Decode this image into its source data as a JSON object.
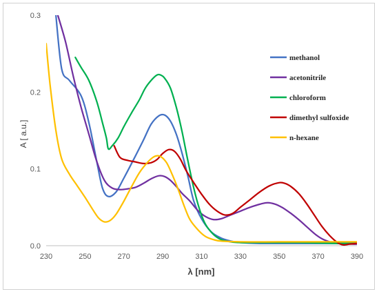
{
  "chart_data": {
    "type": "line",
    "title": "",
    "xlabel": "λ [nm]",
    "ylabel": "A [ a.u.]",
    "xlim": [
      230,
      390
    ],
    "ylim": [
      0,
      0.3
    ],
    "x_ticks": [
      230,
      250,
      270,
      290,
      310,
      330,
      350,
      370,
      390
    ],
    "y_ticks": [
      0,
      0.1,
      0.2,
      0.3
    ],
    "y_tick_labels": [
      "0.0",
      "0.1",
      "0.2",
      "0.3"
    ],
    "grid": false,
    "legend_position": "right",
    "series": [
      {
        "name": "methanol",
        "color": "#4472C4",
        "points": [
          [
            235,
            0.3
          ],
          [
            238,
            0.23
          ],
          [
            242,
            0.215
          ],
          [
            248,
            0.195
          ],
          [
            252,
            0.16
          ],
          [
            256,
            0.11
          ],
          [
            259,
            0.075
          ],
          [
            262,
            0.064
          ],
          [
            266,
            0.07
          ],
          [
            270,
            0.088
          ],
          [
            275,
            0.112
          ],
          [
            280,
            0.137
          ],
          [
            284,
            0.158
          ],
          [
            288,
            0.169
          ],
          [
            291,
            0.17
          ],
          [
            294,
            0.162
          ],
          [
            297,
            0.145
          ],
          [
            300,
            0.12
          ],
          [
            303,
            0.09
          ],
          [
            306,
            0.058
          ],
          [
            310,
            0.035
          ],
          [
            315,
            0.018
          ],
          [
            320,
            0.01
          ],
          [
            325,
            0.006
          ],
          [
            330,
            0.004
          ],
          [
            340,
            0.003
          ],
          [
            360,
            0.003
          ],
          [
            380,
            0.003
          ],
          [
            390,
            0.003
          ]
        ]
      },
      {
        "name": "acetonitrile",
        "color": "#7030A0",
        "points": [
          [
            236,
            0.3
          ],
          [
            240,
            0.265
          ],
          [
            244,
            0.22
          ],
          [
            248,
            0.18
          ],
          [
            252,
            0.145
          ],
          [
            256,
            0.11
          ],
          [
            260,
            0.085
          ],
          [
            264,
            0.075
          ],
          [
            268,
            0.073
          ],
          [
            272,
            0.074
          ],
          [
            276,
            0.076
          ],
          [
            280,
            0.081
          ],
          [
            284,
            0.087
          ],
          [
            288,
            0.091
          ],
          [
            291,
            0.09
          ],
          [
            294,
            0.085
          ],
          [
            297,
            0.077
          ],
          [
            300,
            0.068
          ],
          [
            304,
            0.058
          ],
          [
            308,
            0.046
          ],
          [
            312,
            0.038
          ],
          [
            316,
            0.034
          ],
          [
            320,
            0.035
          ],
          [
            325,
            0.04
          ],
          [
            330,
            0.045
          ],
          [
            335,
            0.05
          ],
          [
            340,
            0.054
          ],
          [
            344,
            0.056
          ],
          [
            348,
            0.054
          ],
          [
            352,
            0.049
          ],
          [
            356,
            0.042
          ],
          [
            360,
            0.034
          ],
          [
            364,
            0.025
          ],
          [
            368,
            0.016
          ],
          [
            372,
            0.009
          ],
          [
            376,
            0.005
          ],
          [
            380,
            0.003
          ],
          [
            390,
            0.002
          ]
        ]
      },
      {
        "name": "chloroform",
        "color": "#00B050",
        "points": [
          [
            245,
            0.245
          ],
          [
            248,
            0.232
          ],
          [
            252,
            0.215
          ],
          [
            256,
            0.188
          ],
          [
            259,
            0.16
          ],
          [
            261,
            0.14
          ],
          [
            262,
            0.126
          ],
          [
            264,
            0.13
          ],
          [
            267,
            0.14
          ],
          [
            270,
            0.155
          ],
          [
            274,
            0.173
          ],
          [
            278,
            0.19
          ],
          [
            281,
            0.205
          ],
          [
            284,
            0.215
          ],
          [
            287,
            0.222
          ],
          [
            289,
            0.222
          ],
          [
            291,
            0.218
          ],
          [
            294,
            0.205
          ],
          [
            297,
            0.18
          ],
          [
            300,
            0.148
          ],
          [
            303,
            0.11
          ],
          [
            306,
            0.075
          ],
          [
            309,
            0.047
          ],
          [
            312,
            0.028
          ],
          [
            316,
            0.015
          ],
          [
            320,
            0.008
          ],
          [
            325,
            0.005
          ],
          [
            330,
            0.004
          ],
          [
            340,
            0.004
          ],
          [
            360,
            0.004
          ],
          [
            380,
            0.003
          ],
          [
            390,
            0.003
          ]
        ]
      },
      {
        "name": "dimethyl sulfoxide",
        "color": "#C00000",
        "points": [
          [
            265,
            0.13
          ],
          [
            268,
            0.115
          ],
          [
            272,
            0.111
          ],
          [
            276,
            0.109
          ],
          [
            280,
            0.107
          ],
          [
            284,
            0.108
          ],
          [
            287,
            0.112
          ],
          [
            290,
            0.12
          ],
          [
            293,
            0.125
          ],
          [
            296,
            0.123
          ],
          [
            299,
            0.113
          ],
          [
            302,
            0.098
          ],
          [
            306,
            0.082
          ],
          [
            310,
            0.067
          ],
          [
            314,
            0.054
          ],
          [
            318,
            0.045
          ],
          [
            322,
            0.04
          ],
          [
            326,
            0.042
          ],
          [
            330,
            0.05
          ],
          [
            335,
            0.06
          ],
          [
            340,
            0.07
          ],
          [
            345,
            0.078
          ],
          [
            350,
            0.082
          ],
          [
            353,
            0.081
          ],
          [
            356,
            0.077
          ],
          [
            360,
            0.068
          ],
          [
            364,
            0.055
          ],
          [
            368,
            0.04
          ],
          [
            372,
            0.025
          ],
          [
            376,
            0.013
          ],
          [
            380,
            0.004
          ],
          [
            383,
            0.001
          ],
          [
            386,
            0.002
          ],
          [
            390,
            0.003
          ]
        ]
      },
      {
        "name": "n-hexane",
        "color": "#FFC000",
        "points": [
          [
            230,
            0.263
          ],
          [
            232,
            0.21
          ],
          [
            235,
            0.15
          ],
          [
            238,
            0.113
          ],
          [
            242,
            0.093
          ],
          [
            246,
            0.078
          ],
          [
            250,
            0.063
          ],
          [
            254,
            0.047
          ],
          [
            257,
            0.036
          ],
          [
            260,
            0.031
          ],
          [
            263,
            0.033
          ],
          [
            266,
            0.041
          ],
          [
            270,
            0.058
          ],
          [
            274,
            0.077
          ],
          [
            278,
            0.095
          ],
          [
            282,
            0.108
          ],
          [
            285,
            0.115
          ],
          [
            287,
            0.117
          ],
          [
            289,
            0.116
          ],
          [
            292,
            0.108
          ],
          [
            295,
            0.092
          ],
          [
            298,
            0.073
          ],
          [
            301,
            0.052
          ],
          [
            304,
            0.034
          ],
          [
            308,
            0.021
          ],
          [
            312,
            0.012
          ],
          [
            316,
            0.008
          ],
          [
            320,
            0.006
          ],
          [
            330,
            0.005
          ],
          [
            350,
            0.005
          ],
          [
            370,
            0.005
          ],
          [
            390,
            0.005
          ]
        ]
      }
    ]
  }
}
